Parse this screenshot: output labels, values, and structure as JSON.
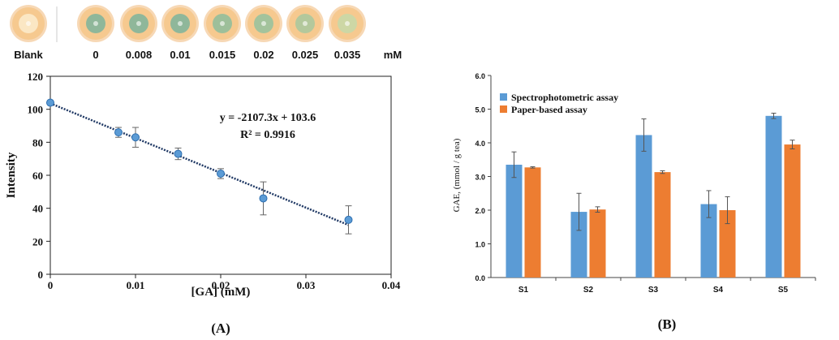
{
  "strip": {
    "labels": [
      "Blank",
      "0",
      "0.008",
      "0.01",
      "0.015",
      "0.02",
      "0.025",
      "0.035"
    ],
    "unit": "mM",
    "ring_color": "#f0b878",
    "center_colors": [
      "#fbe7c4",
      "#8fb79a",
      "#8fb79a",
      "#8fb79a",
      "#9dbf9a",
      "#a3c39c",
      "#b3c89c",
      "#cdd7a5"
    ]
  },
  "chart_data": [
    {
      "type": "scatter",
      "panel_label": "(A)",
      "title": "",
      "xlabel": "[GA] (mM)",
      "ylabel": "Intensity",
      "xlim": [
        0,
        0.04
      ],
      "ylim": [
        0,
        120
      ],
      "xticks": [
        0,
        0.01,
        0.02,
        0.03,
        0.04
      ],
      "xtick_labels": [
        "0",
        "0.01",
        "0.02",
        "0.03",
        "0.04"
      ],
      "yticks": [
        0,
        20,
        40,
        60,
        80,
        100,
        120
      ],
      "ytick_labels": [
        "0",
        "20",
        "40",
        "60",
        "80",
        "100",
        "120"
      ],
      "points": [
        {
          "x": 0,
          "y": 104,
          "err": 0
        },
        {
          "x": 0.008,
          "y": 86,
          "err": 3
        },
        {
          "x": 0.01,
          "y": 83,
          "err": 6
        },
        {
          "x": 0.015,
          "y": 73,
          "err": 3.5
        },
        {
          "x": 0.02,
          "y": 61,
          "err": 3
        },
        {
          "x": 0.025,
          "y": 46,
          "err": 10
        },
        {
          "x": 0.035,
          "y": 33,
          "err": 8.5
        }
      ],
      "fit": {
        "slope": -2107.3,
        "intercept": 103.6
      },
      "equation": "y = -2107.3x + 103.6",
      "r_squared": "R² = 0.9916",
      "point_color": "#5b9bd5",
      "fit_color": "#1f3864"
    },
    {
      "type": "bar",
      "panel_label": "(B)",
      "title": "",
      "xlabel": "",
      "ylabel": "GAE, (mmol / g tea)",
      "ylim": [
        0,
        6
      ],
      "yticks": [
        0,
        1,
        2,
        3,
        4,
        5,
        6
      ],
      "ytick_labels": [
        "0.0",
        "1.0",
        "2.0",
        "3.0",
        "4.0",
        "5.0",
        "6.0"
      ],
      "categories": [
        "S1",
        "S2",
        "S3",
        "S4",
        "S5"
      ],
      "legend_position": "top-left",
      "series": [
        {
          "name": "Spectrophotometric assay",
          "color": "#5b9bd5",
          "values": [
            3.35,
            1.95,
            4.23,
            2.18,
            4.8
          ],
          "errors": [
            0.38,
            0.55,
            0.48,
            0.4,
            0.08
          ]
        },
        {
          "name": "Paper-based assay",
          "color": "#ed7d31",
          "values": [
            3.27,
            2.02,
            3.13,
            2.0,
            3.95
          ],
          "errors": [
            0.02,
            0.08,
            0.04,
            0.4,
            0.13
          ]
        }
      ]
    }
  ]
}
